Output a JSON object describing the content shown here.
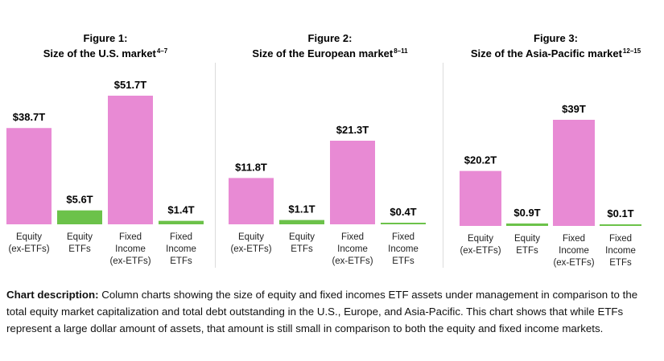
{
  "colors": {
    "market": "#E88AD4",
    "etf": "#6CC24A"
  },
  "chart_data": [
    {
      "type": "bar",
      "figure_label": "Figure 1:",
      "title": "Size of the U.S. market",
      "title_superscript": "4–7",
      "categories": [
        "Equity (ex-ETFs)",
        "Equity ETFs",
        "Fixed Income (ex-ETFs)",
        "Fixed Income ETFs"
      ],
      "category_lines": [
        [
          "Equity",
          "(ex-ETFs)"
        ],
        [
          "Equity",
          "ETFs"
        ],
        [
          "Fixed",
          "Income",
          "(ex-ETFs)"
        ],
        [
          "Fixed",
          "Income",
          "ETFs"
        ]
      ],
      "values": [
        38.7,
        5.6,
        51.7,
        1.4
      ],
      "value_labels": [
        "$38.7T",
        "$5.6T",
        "$51.7T",
        "$1.4T"
      ],
      "bar_colors": [
        "market",
        "etf",
        "market",
        "etf"
      ],
      "unit": "T",
      "grid": false
    },
    {
      "type": "bar",
      "figure_label": "Figure 2:",
      "title": "Size of the European market",
      "title_superscript": "8–11",
      "categories": [
        "Equity (ex-ETFs)",
        "Equity ETFs",
        "Fixed Income (ex-ETFs)",
        "Fixed Income ETFs"
      ],
      "category_lines": [
        [
          "Equity",
          "(ex-ETFs)"
        ],
        [
          "Equity",
          "ETFs"
        ],
        [
          "Fixed",
          "Income",
          "(ex-ETFs)"
        ],
        [
          "Fixed",
          "Income",
          "ETFs"
        ]
      ],
      "values": [
        11.8,
        1.1,
        21.3,
        0.4
      ],
      "value_labels": [
        "$11.8T",
        "$1.1T",
        "$21.3T",
        "$0.4T"
      ],
      "bar_colors": [
        "market",
        "etf",
        "market",
        "etf"
      ],
      "unit": "T",
      "grid": false
    },
    {
      "type": "bar",
      "figure_label": "Figure 3:",
      "title": "Size of the Asia-Pacific market",
      "title_superscript": "12–15",
      "categories": [
        "Equity (ex-ETFs)",
        "Equity ETFs",
        "Fixed Income (ex-ETFs)",
        "Fixed Income ETFs"
      ],
      "category_lines": [
        [
          "Equity",
          "(ex-ETFs)"
        ],
        [
          "Equity",
          "ETFs"
        ],
        [
          "Fixed",
          "Income",
          "(ex-ETFs)"
        ],
        [
          "Fixed",
          "Income",
          "ETFs"
        ]
      ],
      "values": [
        20.2,
        0.9,
        39,
        0.1
      ],
      "value_labels": [
        "$20.2T",
        "$0.9T",
        "$39T",
        "$0.1T"
      ],
      "bar_colors": [
        "market",
        "etf",
        "market",
        "etf"
      ],
      "unit": "T",
      "grid": false
    }
  ],
  "description": {
    "label": "Chart description:",
    "text": " Column charts showing the size of equity and fixed incomes ETF assets under management in comparison to the total equity market capitalization and total debt outstanding in the U.S., Europe, and Asia-Pacific. This chart shows that while ETFs represent a large dollar amount of assets, that amount is still small in comparison to both the equity and fixed income markets."
  }
}
